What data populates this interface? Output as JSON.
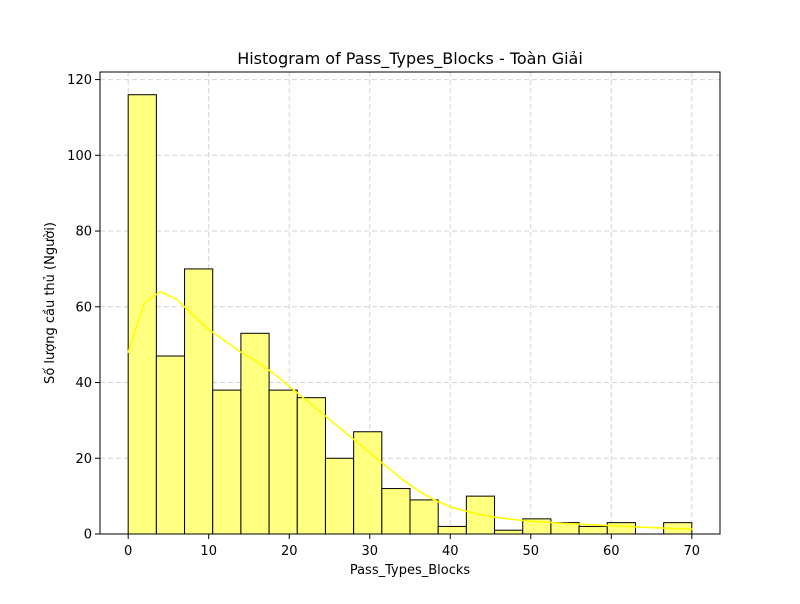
{
  "chart_data": {
    "type": "bar",
    "title": "Histogram of Pass_Types_Blocks - Toàn Giải",
    "xlabel": "Pass_Types_Blocks",
    "ylabel": "Số lượng cầu thủ (Người)",
    "xlim": [
      -3.5,
      73.5
    ],
    "ylim": [
      0,
      122
    ],
    "x_ticks": [
      0,
      10,
      20,
      30,
      40,
      50,
      60,
      70
    ],
    "y_ticks": [
      0,
      20,
      40,
      60,
      80,
      100,
      120
    ],
    "grid": true,
    "bins": [
      {
        "start": 0.0,
        "end": 3.5,
        "value": 116
      },
      {
        "start": 3.5,
        "end": 7.0,
        "value": 47
      },
      {
        "start": 7.0,
        "end": 10.5,
        "value": 70
      },
      {
        "start": 10.5,
        "end": 14.0,
        "value": 38
      },
      {
        "start": 14.0,
        "end": 17.5,
        "value": 53
      },
      {
        "start": 17.5,
        "end": 21.0,
        "value": 38
      },
      {
        "start": 21.0,
        "end": 24.5,
        "value": 36
      },
      {
        "start": 24.5,
        "end": 28.0,
        "value": 20
      },
      {
        "start": 28.0,
        "end": 31.5,
        "value": 27
      },
      {
        "start": 31.5,
        "end": 35.0,
        "value": 12
      },
      {
        "start": 35.0,
        "end": 38.5,
        "value": 9
      },
      {
        "start": 38.5,
        "end": 42.0,
        "value": 2
      },
      {
        "start": 42.0,
        "end": 45.5,
        "value": 10
      },
      {
        "start": 45.5,
        "end": 49.0,
        "value": 1
      },
      {
        "start": 49.0,
        "end": 52.5,
        "value": 4
      },
      {
        "start": 52.5,
        "end": 56.0,
        "value": 3
      },
      {
        "start": 56.0,
        "end": 59.5,
        "value": 2
      },
      {
        "start": 59.5,
        "end": 63.0,
        "value": 3
      },
      {
        "start": 63.0,
        "end": 66.5,
        "value": 0
      },
      {
        "start": 66.5,
        "end": 70.0,
        "value": 3
      }
    ],
    "kde": {
      "x": [
        0,
        2,
        4,
        6,
        8,
        10,
        12,
        14,
        16,
        18,
        20,
        22,
        24,
        26,
        28,
        30,
        32,
        34,
        36,
        38,
        40,
        42,
        44,
        46,
        48,
        50,
        52,
        54,
        56,
        58,
        60,
        62,
        64,
        66,
        68,
        70
      ],
      "y": [
        48,
        61,
        64,
        62,
        58,
        54,
        51,
        48,
        45.5,
        42.5,
        39,
        35.5,
        32,
        28.5,
        25,
        21.5,
        18,
        14.5,
        11.5,
        9,
        7.2,
        6,
        5,
        4.3,
        3.8,
        3.4,
        3.1,
        2.8,
        2.6,
        2.4,
        2.2,
        2.0,
        1.8,
        1.6,
        1.4,
        1.3
      ]
    },
    "colors": {
      "bar_fill": "#ffff80",
      "bar_edge": "#000000",
      "kde_line": "#ffff00",
      "grid": "#d3d3d3"
    }
  }
}
